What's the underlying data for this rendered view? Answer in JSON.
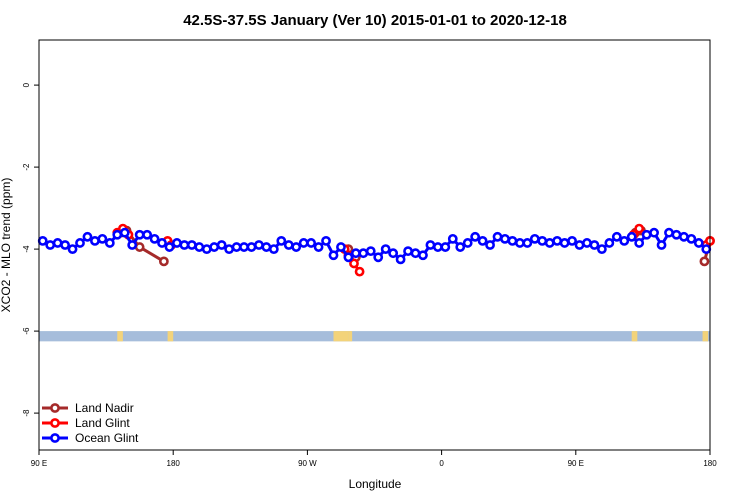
{
  "chart_data": {
    "type": "line",
    "title": "42.5S-37.5S January (Ver 10)   2015-01-01 to 2020-12-18",
    "xlabel": "Longitude",
    "ylabel": "XCO2 - MLO trend (ppm)",
    "xlim": [
      90,
      450
    ],
    "ylim": [
      -8.9,
      1.1
    ],
    "x_ticks": [
      {
        "value": 90,
        "label": "90 E"
      },
      {
        "value": 162,
        "label": "180"
      },
      {
        "value": 234,
        "label": "90 W"
      },
      {
        "value": 306,
        "label": "0"
      },
      {
        "value": 378,
        "label": "90 E"
      },
      {
        "value": 450,
        "label": "180"
      }
    ],
    "y_ticks": [
      {
        "value": 0,
        "label": "0"
      },
      {
        "value": -2,
        "label": "-2"
      },
      {
        "value": -4,
        "label": "-4"
      },
      {
        "value": -6,
        "label": "-6"
      },
      {
        "value": -8,
        "label": "-8"
      }
    ],
    "grid": false,
    "legend_position": "bottom-left",
    "land_band": {
      "y_top": -6.0,
      "y_bottom": -6.25,
      "ocean_color": "#a6bddb",
      "land_color": "#f3d37a",
      "land_segments": [
        [
          132,
          135
        ],
        [
          159,
          162
        ],
        [
          248,
          256
        ],
        [
          256,
          258
        ],
        [
          408,
          411
        ],
        [
          446,
          449
        ]
      ]
    },
    "series": [
      {
        "name": "Land Nadir",
        "color": "#a52a2a",
        "segments": [
          [
            [
              134,
              -3.6
            ],
            [
              137,
              -3.55
            ],
            [
              144,
              -3.95
            ],
            [
              157,
              -4.3
            ]
          ],
          [
            [
              256,
              -4.0
            ],
            [
              260,
              -4.2
            ]
          ],
          [
            [
              410,
              -3.6
            ],
            [
              413,
              -3.55
            ]
          ],
          [
            [
              447,
              -4.3
            ],
            [
              450,
              -3.8
            ]
          ]
        ]
      },
      {
        "name": "Land Glint",
        "color": "#ff0000",
        "segments": [
          [
            [
              132,
              -3.6
            ],
            [
              135,
              -3.5
            ],
            [
              138,
              -3.65
            ]
          ],
          [
            [
              159,
              -3.8
            ],
            [
              161,
              -3.9
            ]
          ],
          [
            [
              254,
              -4.0
            ],
            [
              256,
              -4.15
            ],
            [
              259,
              -4.35
            ],
            [
              262,
              -4.55
            ]
          ],
          [
            [
              409,
              -3.65
            ],
            [
              412,
              -3.5
            ]
          ],
          [
            [
              448,
              -3.9
            ],
            [
              450,
              -3.8
            ]
          ]
        ]
      },
      {
        "name": "Ocean Glint",
        "color": "#0000ff",
        "x": [
          92,
          96,
          100,
          104,
          108,
          112,
          116,
          120,
          124,
          128,
          132,
          136,
          140,
          144,
          148,
          152,
          156,
          160,
          164,
          168,
          172,
          176,
          180,
          184,
          188,
          192,
          196,
          200,
          204,
          208,
          212,
          216,
          220,
          224,
          228,
          232,
          236,
          240,
          244,
          248,
          252,
          256,
          260,
          264,
          268,
          272,
          276,
          280,
          284,
          288,
          292,
          296,
          300,
          304,
          308,
          312,
          316,
          320,
          324,
          328,
          332,
          336,
          340,
          344,
          348,
          352,
          356,
          360,
          364,
          368,
          372,
          376,
          380,
          384,
          388,
          392,
          396,
          400,
          404,
          408,
          412,
          416,
          420,
          424,
          428,
          432,
          436,
          440,
          444,
          448
        ],
        "y": [
          -3.8,
          -3.9,
          -3.85,
          -3.9,
          -4.0,
          -3.85,
          -3.7,
          -3.8,
          -3.75,
          -3.85,
          -3.65,
          -3.6,
          -3.9,
          -3.65,
          -3.65,
          -3.75,
          -3.85,
          -3.95,
          -3.85,
          -3.9,
          -3.9,
          -3.95,
          -4.0,
          -3.95,
          -3.9,
          -4.0,
          -3.95,
          -3.95,
          -3.95,
          -3.9,
          -3.95,
          -4.0,
          -3.8,
          -3.9,
          -3.95,
          -3.85,
          -3.85,
          -3.95,
          -3.8,
          -4.15,
          -3.95,
          -4.2,
          -4.1,
          -4.1,
          -4.05,
          -4.2,
          -4.0,
          -4.1,
          -4.25,
          -4.05,
          -4.1,
          -4.15,
          -3.9,
          -3.95,
          -3.95,
          -3.75,
          -3.95,
          -3.85,
          -3.7,
          -3.8,
          -3.9,
          -3.7,
          -3.75,
          -3.8,
          -3.85,
          -3.85,
          -3.75,
          -3.8,
          -3.85,
          -3.8,
          -3.85,
          -3.8,
          -3.9,
          -3.85,
          -3.9,
          -4.0,
          -3.85,
          -3.7,
          -3.8,
          -3.7,
          -3.85,
          -3.65,
          -3.6,
          -3.9,
          -3.6,
          -3.65,
          -3.7,
          -3.75,
          -3.85,
          -4.0
        ]
      }
    ]
  }
}
